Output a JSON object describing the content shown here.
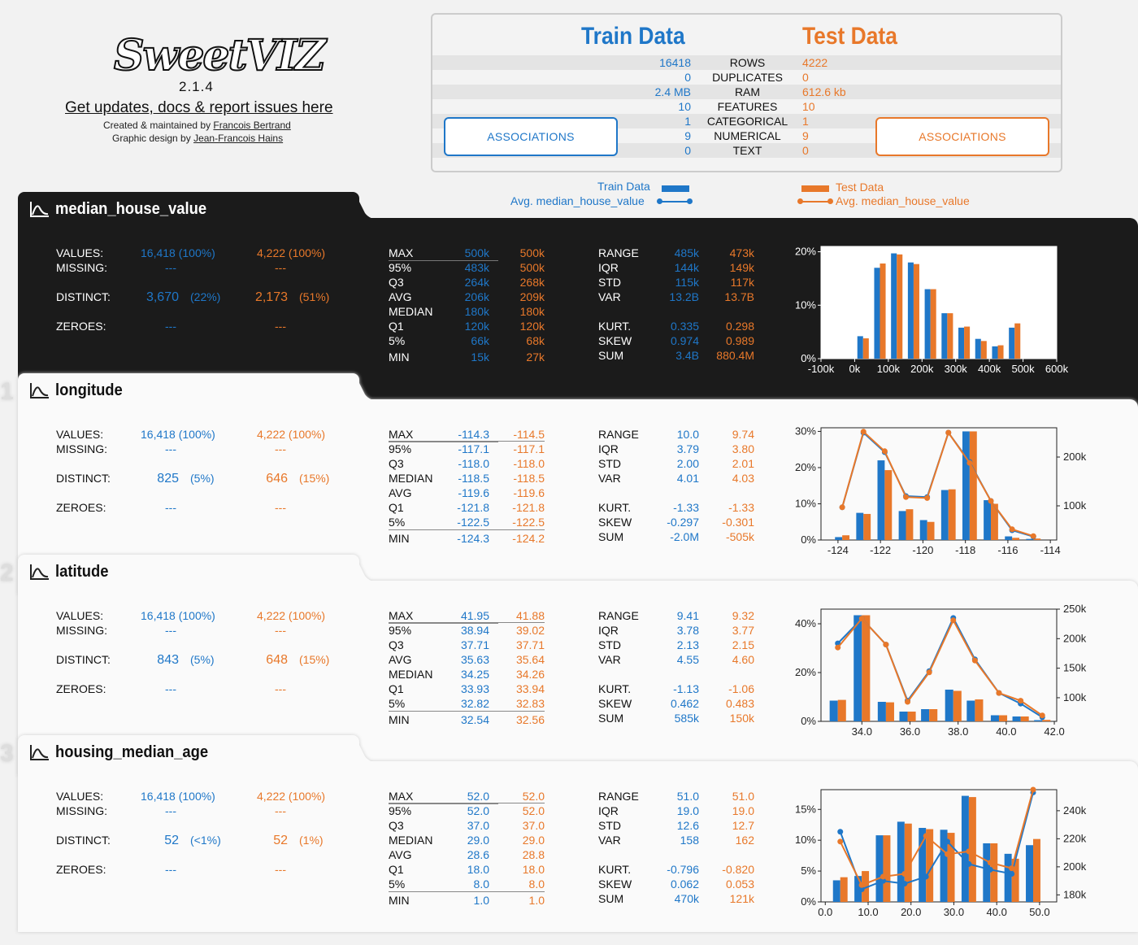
{
  "header": {
    "logo": "SweetVIZ",
    "version": "2.1.4",
    "updates_link": "Get updates, docs & report issues here",
    "credit1_prefix": "Created & maintained by ",
    "credit1_name": "Francois Bertrand",
    "credit2_prefix": "Graphic design by ",
    "credit2_name": "Jean-Francois Hains"
  },
  "summary": {
    "train_title": "Train Data",
    "test_title": "Test Data",
    "rows": [
      {
        "label": "ROWS",
        "train": "16418",
        "test": "4222"
      },
      {
        "label": "DUPLICATES",
        "train": "0",
        "test": "0"
      },
      {
        "label": "RAM",
        "train": "2.4 MB",
        "test": "612.6 kb"
      },
      {
        "label": "FEATURES",
        "train": "10",
        "test": "10"
      },
      {
        "label": "CATEGORICAL",
        "train": "1",
        "test": "1"
      },
      {
        "label": "NUMERICAL",
        "train": "9",
        "test": "9"
      },
      {
        "label": "TEXT",
        "train": "0",
        "test": "0"
      }
    ],
    "assoc_train": "ASSOCIATIONS",
    "assoc_test": "ASSOCIATIONS"
  },
  "legend": {
    "train": "Train Data",
    "train_avg": "Avg. median_house_value",
    "test": "Test Data",
    "test_avg": "Avg. median_house_value"
  },
  "colors": {
    "train": "#1f77c8",
    "test": "#e8782a",
    "dark_panel": "#1b1b1b"
  },
  "features": [
    {
      "index": "",
      "name": "median_house_value",
      "icon": "numeric-distribution-icon",
      "values_label": "VALUES:",
      "values_train": "16,418 (100%)",
      "values_test": "4,222 (100%)",
      "missing_label": "MISSING:",
      "missing_train": "---",
      "missing_test": "---",
      "distinct_label": "DISTINCT:",
      "distinct_train": "3,670",
      "distinct_train_pct": "(22%)",
      "distinct_test": "2,173",
      "distinct_test_pct": "(51%)",
      "zeroes_label": "ZEROES:",
      "zeroes_train": "---",
      "zeroes_test": "---",
      "quant": [
        {
          "label": "MAX",
          "train": "500k",
          "test": "500k"
        },
        {
          "label": "95%",
          "train": "483k",
          "test": "500k"
        },
        {
          "label": "Q3",
          "train": "264k",
          "test": "268k"
        },
        {
          "label": "AVG",
          "train": "206k",
          "test": "209k"
        },
        {
          "label": "MEDIAN",
          "train": "180k",
          "test": "180k"
        },
        {
          "label": "Q1",
          "train": "120k",
          "test": "120k"
        },
        {
          "label": "5%",
          "train": "66k",
          "test": "68k"
        },
        {
          "label": "MIN",
          "train": "15k",
          "test": "27k"
        }
      ],
      "disp": [
        {
          "label": "RANGE",
          "train": "485k",
          "test": "473k"
        },
        {
          "label": "IQR",
          "train": "144k",
          "test": "149k"
        },
        {
          "label": "STD",
          "train": "115k",
          "test": "117k"
        },
        {
          "label": "VAR",
          "train": "13.2B",
          "test": "13.7B"
        }
      ],
      "shape": [
        {
          "label": "KURT.",
          "train": "0.335",
          "test": "0.298"
        },
        {
          "label": "SKEW",
          "train": "0.974",
          "test": "0.989"
        },
        {
          "label": "SUM",
          "train": "3.4B",
          "test": "880.4M"
        }
      ]
    },
    {
      "index": "1",
      "name": "longitude",
      "icon": "numeric-distribution-icon",
      "values_label": "VALUES:",
      "values_train": "16,418 (100%)",
      "values_test": "4,222 (100%)",
      "missing_label": "MISSING:",
      "missing_train": "---",
      "missing_test": "---",
      "distinct_label": "DISTINCT:",
      "distinct_train": "825",
      "distinct_train_pct": "(5%)",
      "distinct_test": "646",
      "distinct_test_pct": "(15%)",
      "zeroes_label": "ZEROES:",
      "zeroes_train": "---",
      "zeroes_test": "---",
      "quant": [
        {
          "label": "MAX",
          "train": "-114.3",
          "test": "-114.5"
        },
        {
          "label": "95%",
          "train": "-117.1",
          "test": "-117.1"
        },
        {
          "label": "Q3",
          "train": "-118.0",
          "test": "-118.0"
        },
        {
          "label": "MEDIAN",
          "train": "-118.5",
          "test": "-118.5"
        },
        {
          "label": "AVG",
          "train": "-119.6",
          "test": "-119.6"
        },
        {
          "label": "Q1",
          "train": "-121.8",
          "test": "-121.8"
        },
        {
          "label": "5%",
          "train": "-122.5",
          "test": "-122.5"
        },
        {
          "label": "MIN",
          "train": "-124.3",
          "test": "-124.2"
        }
      ],
      "disp": [
        {
          "label": "RANGE",
          "train": "10.0",
          "test": "9.74"
        },
        {
          "label": "IQR",
          "train": "3.79",
          "test": "3.80"
        },
        {
          "label": "STD",
          "train": "2.00",
          "test": "2.01"
        },
        {
          "label": "VAR",
          "train": "4.01",
          "test": "4.03"
        }
      ],
      "shape": [
        {
          "label": "KURT.",
          "train": "-1.33",
          "test": "-1.33"
        },
        {
          "label": "SKEW",
          "train": "-0.297",
          "test": "-0.301"
        },
        {
          "label": "SUM",
          "train": "-2.0M",
          "test": "-505k"
        }
      ]
    },
    {
      "index": "2",
      "name": "latitude",
      "icon": "numeric-distribution-icon",
      "values_label": "VALUES:",
      "values_train": "16,418 (100%)",
      "values_test": "4,222 (100%)",
      "missing_label": "MISSING:",
      "missing_train": "---",
      "missing_test": "---",
      "distinct_label": "DISTINCT:",
      "distinct_train": "843",
      "distinct_train_pct": "(5%)",
      "distinct_test": "648",
      "distinct_test_pct": "(15%)",
      "zeroes_label": "ZEROES:",
      "zeroes_train": "---",
      "zeroes_test": "---",
      "quant": [
        {
          "label": "MAX",
          "train": "41.95",
          "test": "41.88"
        },
        {
          "label": "95%",
          "train": "38.94",
          "test": "39.02"
        },
        {
          "label": "Q3",
          "train": "37.71",
          "test": "37.71"
        },
        {
          "label": "AVG",
          "train": "35.63",
          "test": "35.64"
        },
        {
          "label": "MEDIAN",
          "train": "34.25",
          "test": "34.26"
        },
        {
          "label": "Q1",
          "train": "33.93",
          "test": "33.94"
        },
        {
          "label": "5%",
          "train": "32.82",
          "test": "32.83"
        },
        {
          "label": "MIN",
          "train": "32.54",
          "test": "32.56"
        }
      ],
      "disp": [
        {
          "label": "RANGE",
          "train": "9.41",
          "test": "9.32"
        },
        {
          "label": "IQR",
          "train": "3.78",
          "test": "3.77"
        },
        {
          "label": "STD",
          "train": "2.13",
          "test": "2.15"
        },
        {
          "label": "VAR",
          "train": "4.55",
          "test": "4.60"
        }
      ],
      "shape": [
        {
          "label": "KURT.",
          "train": "-1.13",
          "test": "-1.06"
        },
        {
          "label": "SKEW",
          "train": "0.462",
          "test": "0.483"
        },
        {
          "label": "SUM",
          "train": "585k",
          "test": "150k"
        }
      ]
    },
    {
      "index": "3",
      "name": "housing_median_age",
      "icon": "numeric-distribution-icon",
      "values_label": "VALUES:",
      "values_train": "16,418 (100%)",
      "values_test": "4,222 (100%)",
      "missing_label": "MISSING:",
      "missing_train": "---",
      "missing_test": "---",
      "distinct_label": "DISTINCT:",
      "distinct_train": "52",
      "distinct_train_pct": "(<1%)",
      "distinct_test": "52",
      "distinct_test_pct": "(1%)",
      "zeroes_label": "ZEROES:",
      "zeroes_train": "---",
      "zeroes_test": "---",
      "quant": [
        {
          "label": "MAX",
          "train": "52.0",
          "test": "52.0"
        },
        {
          "label": "95%",
          "train": "52.0",
          "test": "52.0"
        },
        {
          "label": "Q3",
          "train": "37.0",
          "test": "37.0"
        },
        {
          "label": "MEDIAN",
          "train": "29.0",
          "test": "29.0"
        },
        {
          "label": "AVG",
          "train": "28.6",
          "test": "28.8"
        },
        {
          "label": "Q1",
          "train": "18.0",
          "test": "18.0"
        },
        {
          "label": "5%",
          "train": "8.0",
          "test": "8.0"
        },
        {
          "label": "MIN",
          "train": "1.0",
          "test": "1.0"
        }
      ],
      "disp": [
        {
          "label": "RANGE",
          "train": "51.0",
          "test": "51.0"
        },
        {
          "label": "IQR",
          "train": "19.0",
          "test": "19.0"
        },
        {
          "label": "STD",
          "train": "12.6",
          "test": "12.7"
        },
        {
          "label": "VAR",
          "train": "158",
          "test": "162"
        }
      ],
      "shape": [
        {
          "label": "KURT.",
          "train": "-0.796",
          "test": "-0.820"
        },
        {
          "label": "SKEW",
          "train": "0.062",
          "test": "0.053"
        },
        {
          "label": "SUM",
          "train": "470k",
          "test": "121k"
        }
      ]
    }
  ],
  "chart_data": [
    {
      "type": "bar",
      "feature": "median_house_value",
      "x_ticks": [
        "-100k",
        "0k",
        "100k",
        "200k",
        "300k",
        "400k",
        "500k",
        "600k"
      ],
      "xlim": [
        -100000,
        600000
      ],
      "y_ticks": [
        "0%",
        "10%",
        "20%"
      ],
      "ylim": [
        0,
        21
      ],
      "bin_centers": [
        25000,
        75000,
        125000,
        175000,
        225000,
        275000,
        325000,
        375000,
        425000,
        475000
      ],
      "series": [
        {
          "name": "Train Data",
          "values": [
            4.2,
            17.0,
            19.7,
            18.0,
            13.0,
            8.5,
            5.8,
            3.7,
            2.3,
            5.8
          ]
        },
        {
          "name": "Test Data",
          "values": [
            3.8,
            17.8,
            19.5,
            17.7,
            13.0,
            8.5,
            6.0,
            3.3,
            2.5,
            6.6
          ]
        }
      ]
    },
    {
      "type": "bar",
      "feature": "longitude",
      "x_ticks": [
        "-124",
        "-122",
        "-120",
        "-118",
        "-116",
        "-114"
      ],
      "xlim": [
        -124.8,
        -113.7
      ],
      "y_ticks": [
        "0%",
        "10%",
        "20%",
        "30%"
      ],
      "ylim": [
        0,
        31
      ],
      "y2_ticks": [
        "100k",
        "200k"
      ],
      "y2lim": [
        30000,
        260000
      ],
      "bin_centers": [
        -123.8,
        -122.8,
        -121.8,
        -120.8,
        -119.8,
        -118.8,
        -117.8,
        -116.8,
        -115.8,
        -114.8
      ],
      "series": [
        {
          "name": "Train Data",
          "values": [
            0.8,
            7.5,
            22.0,
            8.0,
            5.5,
            13.8,
            30.0,
            11.0,
            1.0,
            0.3
          ]
        },
        {
          "name": "Test Data",
          "values": [
            1.3,
            7.2,
            19.3,
            8.5,
            5.0,
            14.0,
            30.0,
            10.0,
            0.6,
            0.4
          ]
        }
      ],
      "avg_series": [
        {
          "name": "Avg. median_house_value",
          "values": [
            97000,
            250000,
            210000,
            120000,
            118000,
            250000,
            190000,
            110000,
            50000,
            37000
          ]
        },
        {
          "name": "Avg. median_house_value",
          "values": [
            97000,
            252000,
            212000,
            118000,
            116000,
            250000,
            188000,
            110000,
            52000,
            38000
          ]
        }
      ]
    },
    {
      "type": "bar",
      "feature": "latitude",
      "x_ticks": [
        "34.0",
        "36.0",
        "38.0",
        "40.0",
        "42.0"
      ],
      "xlim": [
        32.3,
        42.1
      ],
      "y_ticks": [
        "0%",
        "20%",
        "40%"
      ],
      "ylim": [
        0,
        46
      ],
      "y2_ticks": [
        "100k",
        "150k",
        "200k",
        "250k"
      ],
      "y2lim": [
        60000,
        250000
      ],
      "bin_centers": [
        33.0,
        34.0,
        35.0,
        35.9,
        36.8,
        37.8,
        38.7,
        39.7,
        40.6,
        41.5
      ],
      "series": [
        {
          "name": "Train Data",
          "values": [
            8.5,
            43.5,
            8.0,
            4.0,
            5.0,
            13.0,
            8.5,
            2.5,
            2.0,
            0.5
          ]
        },
        {
          "name": "Test Data",
          "values": [
            8.8,
            43.5,
            7.8,
            4.0,
            5.0,
            12.5,
            9.0,
            2.5,
            2.0,
            0.6
          ]
        }
      ],
      "avg_series": [
        {
          "name": "Avg. median_house_value",
          "values": [
            192000,
            234000,
            190000,
            95000,
            145000,
            235000,
            165000,
            108000,
            90000,
            67000
          ]
        },
        {
          "name": "Avg. median_house_value",
          "values": [
            185000,
            234000,
            190000,
            93000,
            143000,
            231000,
            163000,
            108000,
            95000,
            70000
          ]
        }
      ]
    },
    {
      "type": "bar",
      "feature": "housing_median_age",
      "x_ticks": [
        "0.0",
        "10.0",
        "20.0",
        "30.0",
        "40.0",
        "50.0"
      ],
      "xlim": [
        -1,
        54
      ],
      "y_ticks": [
        "0%",
        "5%",
        "10%",
        "15%"
      ],
      "ylim": [
        0,
        18.2
      ],
      "y2_ticks": [
        "180k",
        "200k",
        "220k",
        "240k"
      ],
      "y2lim": [
        175000,
        255000
      ],
      "bin_centers": [
        3.5,
        8.5,
        13.5,
        18.5,
        23.5,
        28.5,
        33.5,
        38.5,
        43.5,
        48.5
      ],
      "series": [
        {
          "name": "Train Data",
          "values": [
            3.5,
            4.2,
            10.8,
            13.0,
            12.0,
            11.7,
            17.2,
            9.5,
            7.8,
            9.2
          ]
        },
        {
          "name": "Test Data",
          "values": [
            4.0,
            5.0,
            10.8,
            12.7,
            11.8,
            11.2,
            17.0,
            9.5,
            7.0,
            10.2
          ]
        }
      ],
      "avg_series": [
        {
          "name": "Avg. median_house_value",
          "values": [
            225000,
            184000,
            190000,
            188000,
            193000,
            218000,
            202000,
            198000,
            195000,
            253000
          ]
        },
        {
          "name": "Avg. median_house_value",
          "values": [
            218000,
            187000,
            193000,
            195000,
            222000,
            209000,
            211000,
            203000,
            199000,
            255000
          ]
        }
      ]
    }
  ]
}
